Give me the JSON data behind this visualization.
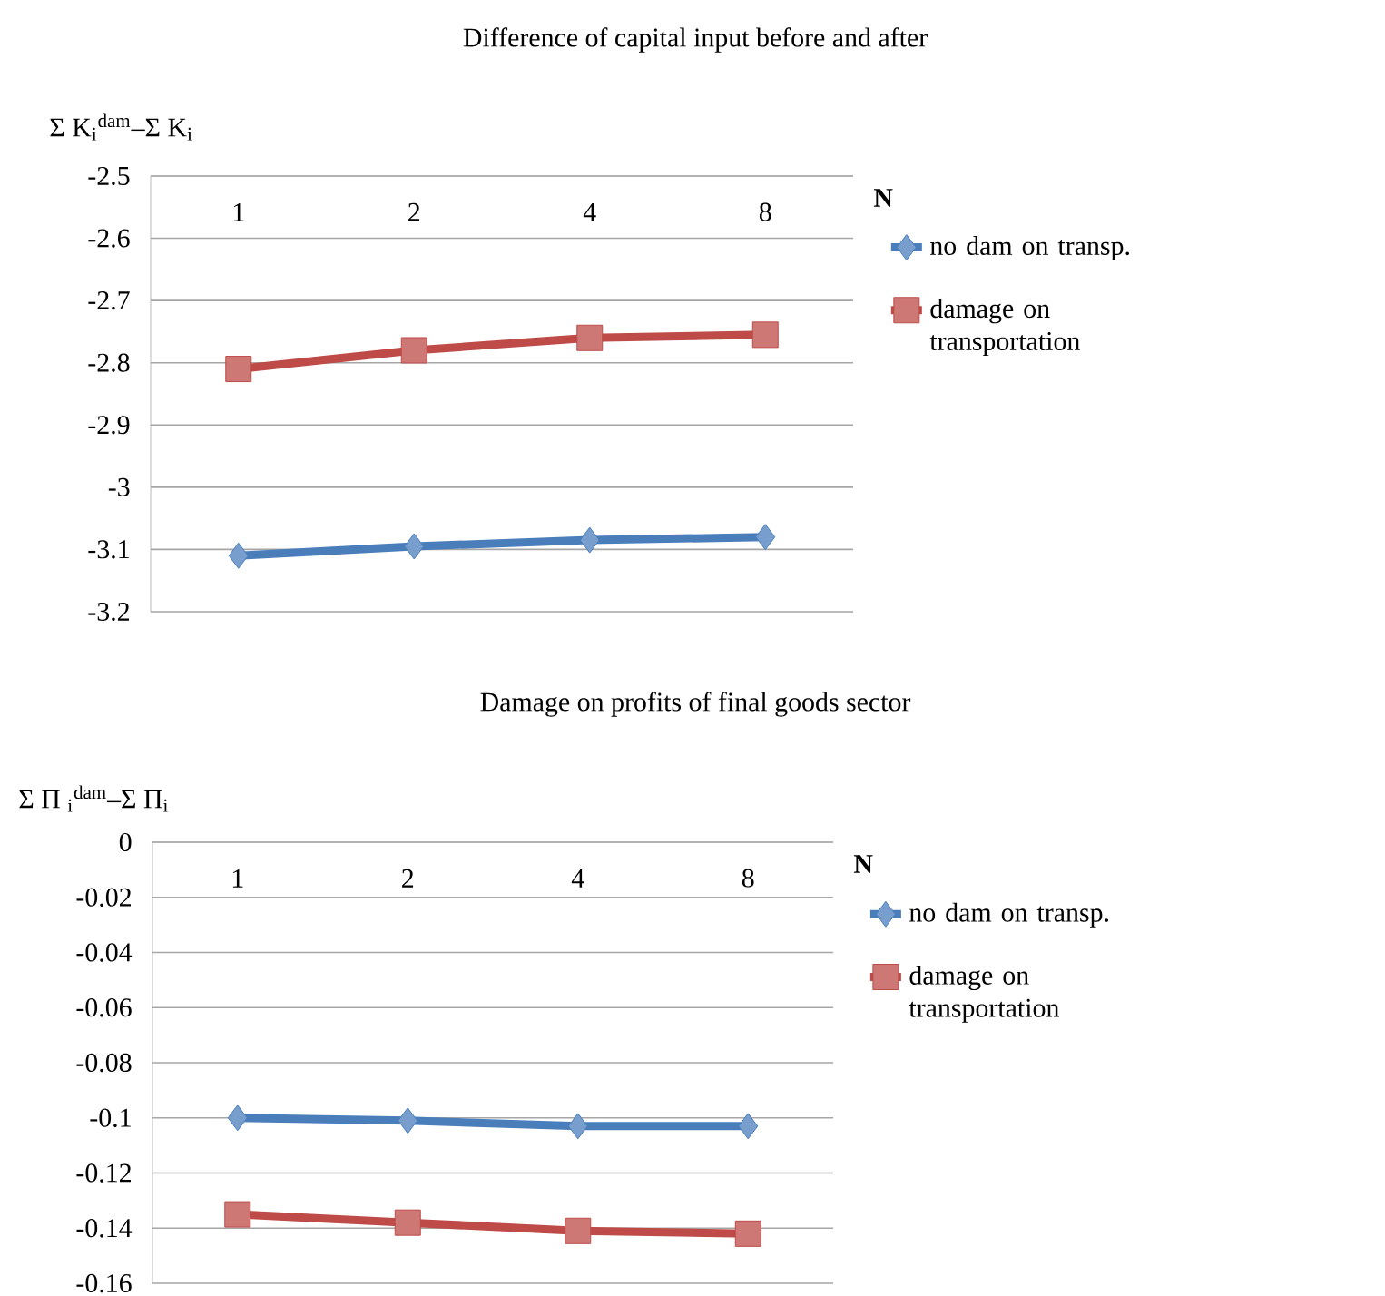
{
  "chart_data": [
    {
      "type": "line",
      "title": "Difference of capital input before and after",
      "ylabel": "Σ K$_{i}$$^{dam}$–Σ K$_{i}$",
      "xlabel": "N",
      "categories": [
        "1",
        "2",
        "4",
        "8"
      ],
      "series": [
        {
          "name": "no dam on transp.",
          "color": "#4a7ebb",
          "marker": "diamond",
          "values": [
            -3.11,
            -3.095,
            -3.085,
            -3.08
          ]
        },
        {
          "name": "damage on transportation",
          "color": "#be4b48",
          "marker": "square",
          "values": [
            -2.81,
            -2.78,
            -2.76,
            -2.755
          ]
        }
      ],
      "ylim": [
        -3.2,
        -2.5
      ],
      "yticks": [
        -3.2,
        -3.1,
        -3,
        -2.9,
        -2.8,
        -2.7,
        -2.6,
        -2.5
      ],
      "grid": "y",
      "legend": "right"
    },
    {
      "type": "line",
      "title": "Damage on profits of final goods sector",
      "ylabel": "Σ Π $_{i}$$^{dam}$–Σ Π$_{i}$",
      "xlabel": "N",
      "categories": [
        "1",
        "2",
        "4",
        "8"
      ],
      "series": [
        {
          "name": "no dam on transp.",
          "color": "#4a7ebb",
          "marker": "diamond",
          "values": [
            -0.1,
            -0.101,
            -0.103,
            -0.103
          ]
        },
        {
          "name": "damage on transportation",
          "color": "#be4b48",
          "marker": "square",
          "values": [
            -0.135,
            -0.138,
            -0.141,
            -0.142
          ]
        }
      ],
      "ylim": [
        -0.16,
        0
      ],
      "yticks": [
        -0.16,
        -0.14,
        -0.12,
        -0.1,
        -0.08,
        -0.06,
        -0.04,
        -0.02,
        0
      ],
      "grid": "y",
      "legend": "right"
    }
  ]
}
